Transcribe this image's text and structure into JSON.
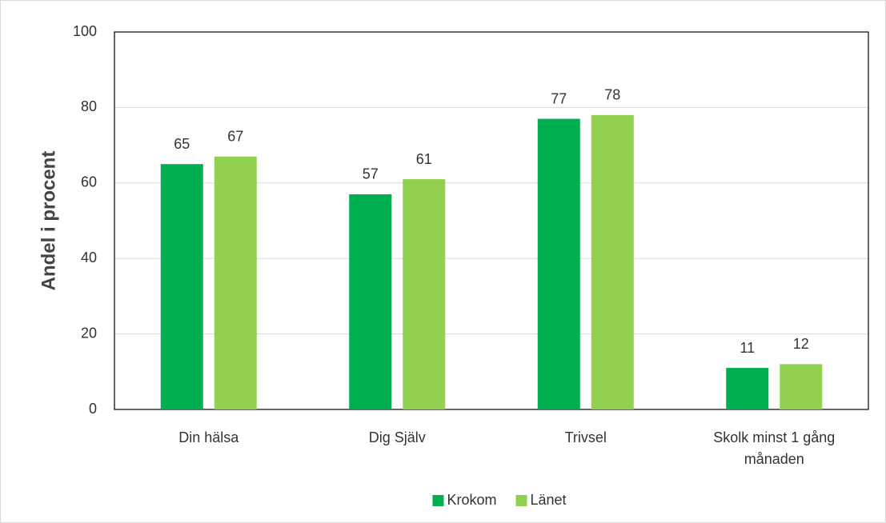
{
  "chart_data": {
    "type": "bar",
    "y_label": "Andel i procent",
    "categories": [
      "Din hälsa",
      "Dig Själv",
      "Trivsel",
      "Skolk minst 1 gång månaden"
    ],
    "series": [
      {
        "name": "Krokom",
        "color": "#00b050",
        "values": [
          65,
          57,
          77,
          11
        ]
      },
      {
        "name": "Länet",
        "color": "#92d050",
        "values": [
          67,
          61,
          78,
          12
        ]
      }
    ],
    "ylim": [
      0,
      100
    ],
    "yticks": [
      0,
      20,
      40,
      60,
      80,
      100
    ],
    "grid": true,
    "legend": "bottom"
  }
}
